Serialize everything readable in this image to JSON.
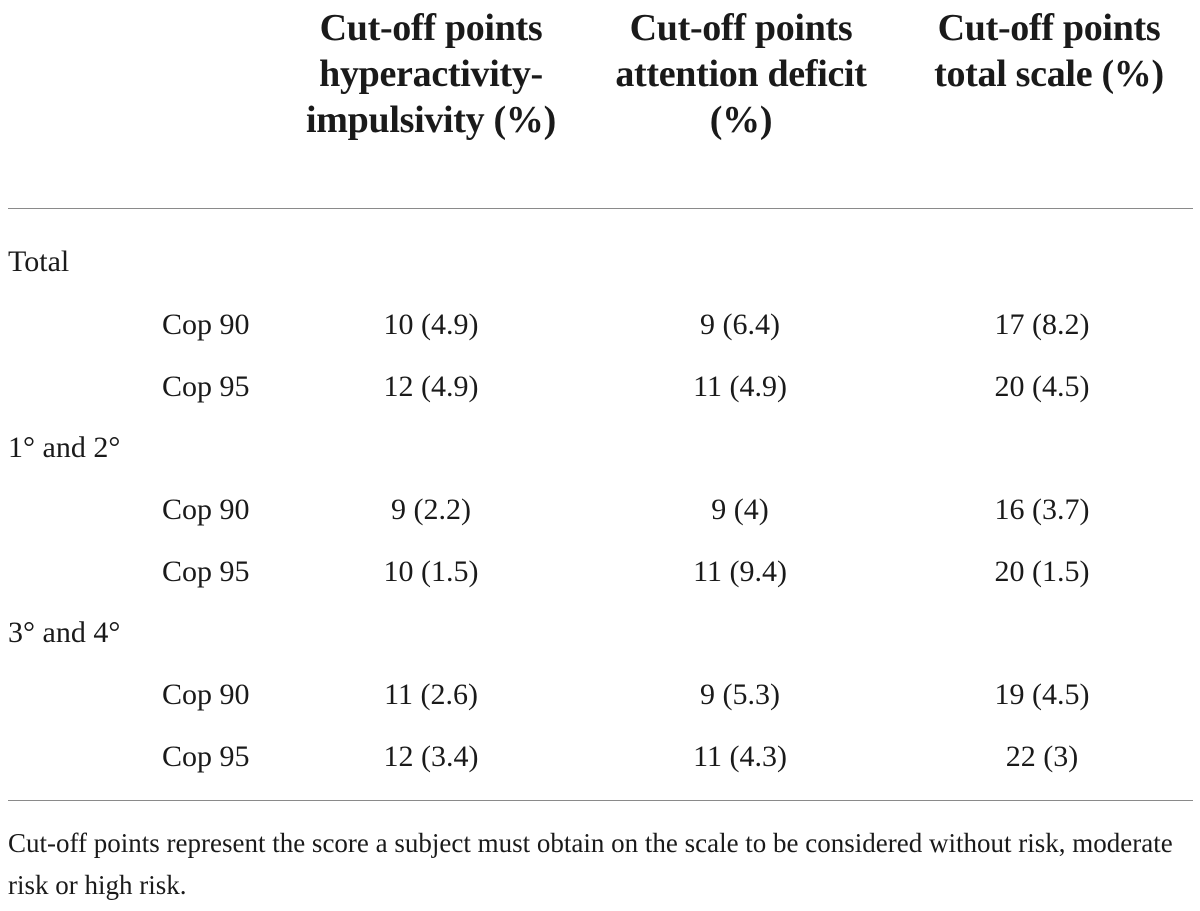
{
  "table": {
    "headers": [
      "Cut-off points hyperactivity-impulsivity (%)",
      "Cut-off points attention deficit (%)",
      "Cut-off points total scale (%)"
    ],
    "groups": [
      {
        "label": "Total",
        "rows": [
          {
            "label": "Cop 90",
            "values": [
              "10 (4.9)",
              "9 (6.4)",
              "17 (8.2)"
            ]
          },
          {
            "label": "Cop 95",
            "values": [
              "12 (4.9)",
              "11 (4.9)",
              "20 (4.5)"
            ]
          }
        ]
      },
      {
        "label": "1° and 2°",
        "rows": [
          {
            "label": "Cop 90",
            "values": [
              "9 (2.2)",
              "9 (4)",
              "16 (3.7)"
            ]
          },
          {
            "label": "Cop 95",
            "values": [
              "10 (1.5)",
              "11 (9.4)",
              "20 (1.5)"
            ]
          }
        ]
      },
      {
        "label": "3° and 4°",
        "rows": [
          {
            "label": "Cop 90",
            "values": [
              "11 (2.6)",
              "9 (5.3)",
              "19 (4.5)"
            ]
          },
          {
            "label": "Cop 95",
            "values": [
              "12 (3.4)",
              "11 (4.3)",
              "22 (3)"
            ]
          }
        ]
      }
    ]
  },
  "footnote": "Cut-off points represent the score a subject must obtain on the scale to be considered without risk, moderate risk or high risk."
}
